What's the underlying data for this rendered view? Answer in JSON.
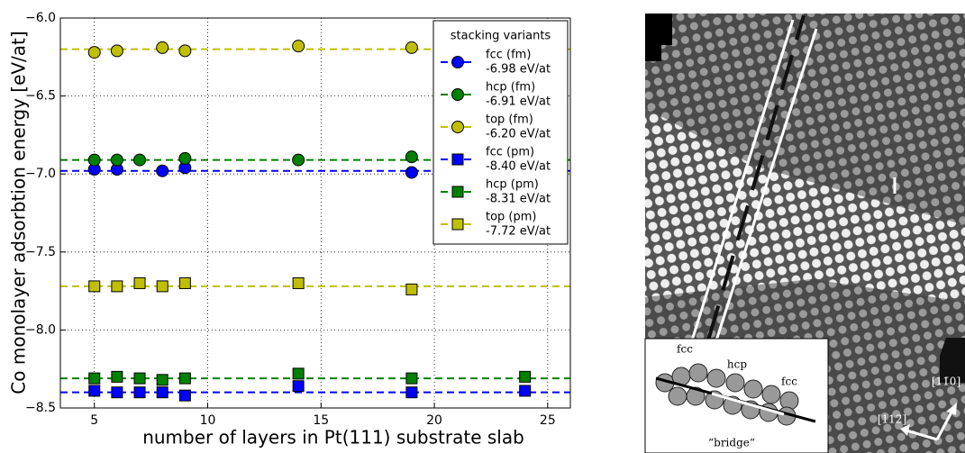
{
  "chart_data": {
    "type": "scatter",
    "xlabel": "number of layers in Pt(111) substrate slab",
    "ylabel": "Co monolayer adsorbtion energy [eV/at]",
    "xlim": [
      3.5,
      26
    ],
    "ylim": [
      -8.5,
      -6.0
    ],
    "xticks": [
      5,
      10,
      15,
      20,
      25
    ],
    "yticks": [
      {
        "value": -6.0,
        "label": "−6.0"
      },
      {
        "value": -6.5,
        "label": "−6.5"
      },
      {
        "value": -7.0,
        "label": "−7.0"
      },
      {
        "value": -7.5,
        "label": "−7.5"
      },
      {
        "value": -8.0,
        "label": "−8.0"
      },
      {
        "value": -8.5,
        "label": "−8.5"
      }
    ],
    "grid": true,
    "legend_title": "stacking variants",
    "legend_position": "upper right",
    "series": [
      {
        "name": "fcc (fm)",
        "color": "#0000ff",
        "marker": "circle",
        "x": [
          5,
          6,
          8,
          9,
          19
        ],
        "values": [
          -6.97,
          -6.97,
          -6.98,
          -6.96,
          -6.99
        ],
        "reference": {
          "value": -6.98,
          "label": "-6.98 eV/at"
        }
      },
      {
        "name": "hcp (fm)",
        "color": "#008000",
        "marker": "circle",
        "x": [
          5,
          6,
          7,
          9,
          14,
          19
        ],
        "values": [
          -6.91,
          -6.91,
          -6.91,
          -6.9,
          -6.91,
          -6.89
        ],
        "reference": {
          "value": -6.91,
          "label": "-6.91 eV/at"
        }
      },
      {
        "name": "top (fm)",
        "color": "#bfbf00",
        "marker": "circle",
        "x": [
          5,
          6,
          8,
          9,
          14,
          19
        ],
        "values": [
          -6.22,
          -6.21,
          -6.19,
          -6.21,
          -6.18,
          -6.19
        ],
        "reference": {
          "value": -6.2,
          "label": "-6.20 eV/at"
        }
      },
      {
        "name": "fcc (pm)",
        "color": "#0000ff",
        "marker": "square",
        "x": [
          5,
          6,
          7,
          8,
          9,
          14,
          19,
          24
        ],
        "values": [
          -8.39,
          -8.4,
          -8.4,
          -8.4,
          -8.42,
          -8.36,
          -8.4,
          -8.39
        ],
        "reference": {
          "value": -8.4,
          "label": "-8.40 eV/at"
        }
      },
      {
        "name": "hcp (pm)",
        "color": "#008000",
        "marker": "square",
        "x": [
          5,
          6,
          7,
          8,
          9,
          14,
          19,
          24
        ],
        "values": [
          -8.31,
          -8.3,
          -8.31,
          -8.32,
          -8.31,
          -8.28,
          -8.31,
          -8.3
        ],
        "reference": {
          "value": -8.31,
          "label": "-8.31 eV/at"
        }
      },
      {
        "name": "top (pm)",
        "color": "#bfbf00",
        "marker": "square",
        "x": [
          5,
          6,
          7,
          8,
          9,
          14,
          19
        ],
        "values": [
          -7.72,
          -7.72,
          -7.7,
          -7.72,
          -7.7,
          -7.7,
          -7.74
        ],
        "reference": {
          "value": -7.72,
          "label": "-7.72 eV/at"
        }
      }
    ]
  },
  "image": {
    "inset_labels": [
      "fcc",
      "hcp",
      "fcc",
      "“bridge“"
    ],
    "directions": [
      "[11̄0]",
      "[112̄]"
    ]
  }
}
